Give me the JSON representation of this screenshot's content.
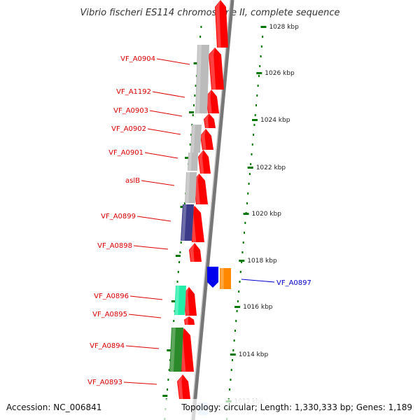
{
  "title": "Vibrio fischeri ES114 chromosome II, complete sequence",
  "footer": {
    "accession": "Accession: NC_006841",
    "summary": "Topology: circular; Length: 1,330,333 bp; Genes: 1,189"
  },
  "colors": {
    "forward": "#ff0000",
    "gene_label": "#dd0000",
    "reverse_label": "#0000cc",
    "tick": "#007700",
    "grey": "#bbbbbb",
    "navy": "#3b3b8a",
    "teal": "#22eeaa",
    "darkgreen": "#2a8a2a",
    "blue": "#0000ee",
    "orange": "#ff8800"
  },
  "kbp_labels": [
    "1028 kbp",
    "1026 kbp",
    "1024 kbp",
    "1022 kbp",
    "1020 kbp",
    "1018 kbp",
    "1016 kbp",
    "1014 kbp",
    "1012 kbp"
  ],
  "gene_labels": [
    "VF_A0904",
    "VF_A1192",
    "VF_A0903",
    "VF_A0902",
    "VF_A0901",
    "aslB",
    "VF_A0899",
    "VF_A0898",
    "VF_A0896",
    "VF_A0895",
    "VF_A0894",
    "VF_A0893"
  ],
  "reverse_labels": [
    "VF_A0897"
  ]
}
